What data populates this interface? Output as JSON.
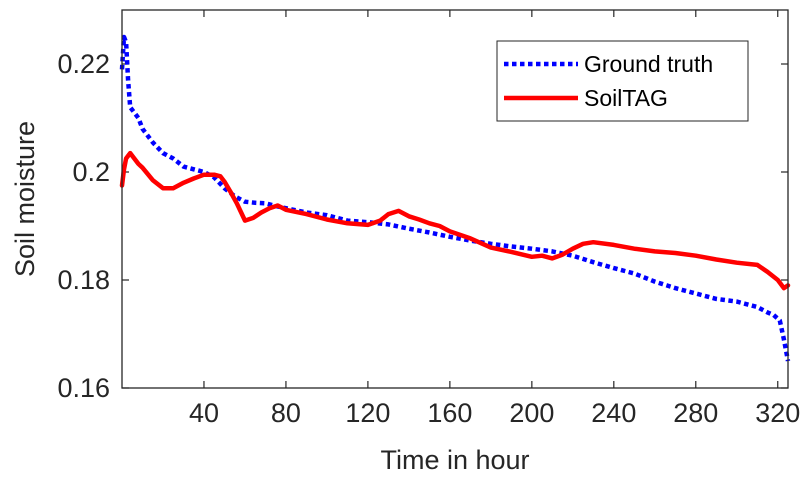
{
  "chart_data": {
    "type": "line",
    "title": "",
    "xlabel": "Time in hour",
    "ylabel": "Soil moisture",
    "xlim": [
      0,
      325
    ],
    "ylim": [
      0.16,
      0.23
    ],
    "xticks": [
      40,
      80,
      120,
      160,
      200,
      240,
      280,
      320
    ],
    "xtick_labels": [
      "40",
      "80",
      "120",
      "160",
      "200",
      "240",
      "280",
      "320"
    ],
    "yticks": [
      0.16,
      0.18,
      0.2,
      0.22
    ],
    "ytick_labels": [
      "0.16",
      "0.18",
      "0.2",
      "0.22"
    ],
    "grid": false,
    "legend_position": "top-right",
    "series": [
      {
        "name": "Ground truth",
        "color": "#0000ff",
        "style": "dotted",
        "x": [
          0,
          1,
          2,
          3,
          4,
          6,
          8,
          10,
          15,
          20,
          25,
          30,
          35,
          40,
          45,
          50,
          55,
          60,
          65,
          70,
          75,
          80,
          90,
          100,
          110,
          120,
          130,
          140,
          150,
          160,
          170,
          180,
          190,
          200,
          210,
          220,
          230,
          240,
          250,
          260,
          270,
          280,
          290,
          300,
          310,
          315,
          318,
          321,
          323,
          325
        ],
        "y": [
          0.219,
          0.225,
          0.224,
          0.217,
          0.212,
          0.211,
          0.21,
          0.208,
          0.2055,
          0.2035,
          0.2025,
          0.201,
          0.2005,
          0.2,
          0.199,
          0.197,
          0.1955,
          0.1945,
          0.1943,
          0.1942,
          0.1937,
          0.1933,
          0.1925,
          0.192,
          0.191,
          0.1907,
          0.1903,
          0.1895,
          0.1888,
          0.188,
          0.1873,
          0.1867,
          0.1862,
          0.1858,
          0.1853,
          0.1845,
          0.1833,
          0.1822,
          0.1812,
          0.1797,
          0.1785,
          0.1775,
          0.1765,
          0.176,
          0.175,
          0.174,
          0.1735,
          0.1725,
          0.169,
          0.165
        ]
      },
      {
        "name": "SoilTAG",
        "color": "#ff0000",
        "style": "solid",
        "x": [
          0,
          1,
          2,
          4,
          6,
          8,
          10,
          15,
          20,
          25,
          30,
          35,
          40,
          45,
          48,
          50,
          53,
          56,
          60,
          64,
          68,
          72,
          76,
          80,
          90,
          100,
          110,
          120,
          126,
          130,
          135,
          140,
          145,
          150,
          155,
          160,
          170,
          180,
          190,
          200,
          205,
          210,
          215,
          220,
          225,
          230,
          240,
          250,
          260,
          270,
          280,
          290,
          300,
          310,
          315,
          320,
          323,
          325
        ],
        "y": [
          0.1975,
          0.2005,
          0.2025,
          0.2035,
          0.2025,
          0.2015,
          0.2008,
          0.1985,
          0.197,
          0.197,
          0.198,
          0.1988,
          0.1995,
          0.1995,
          0.1992,
          0.1982,
          0.1963,
          0.1942,
          0.191,
          0.1915,
          0.1925,
          0.1933,
          0.1938,
          0.193,
          0.1922,
          0.1912,
          0.1905,
          0.1902,
          0.191,
          0.1922,
          0.1928,
          0.1918,
          0.1912,
          0.1905,
          0.19,
          0.189,
          0.1877,
          0.186,
          0.1852,
          0.1843,
          0.1845,
          0.184,
          0.1847,
          0.1858,
          0.1867,
          0.187,
          0.1865,
          0.1858,
          0.1853,
          0.185,
          0.1845,
          0.1838,
          0.1832,
          0.1828,
          0.1815,
          0.18,
          0.1785,
          0.179
        ]
      }
    ]
  }
}
